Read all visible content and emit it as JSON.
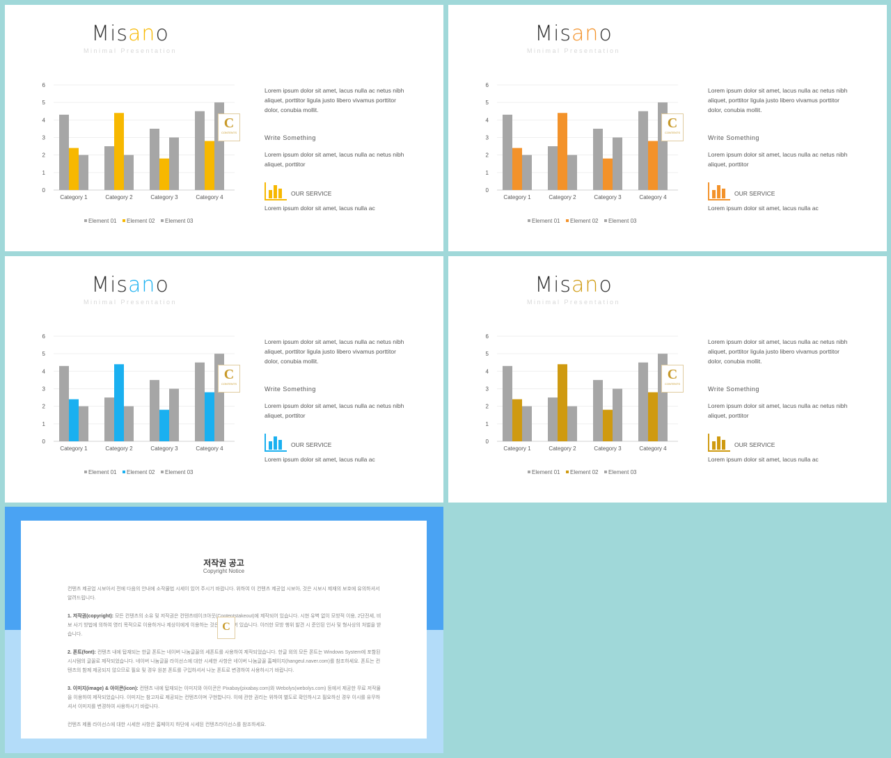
{
  "slides": [
    {
      "brand_part1": "Mis",
      "brand_accent": "an",
      "brand_part2": "o",
      "subtitle": "Minimal Presentation",
      "accent_color": "#f7b800",
      "paragraph1": "Lorem ipsum dolor sit amet, lacus nulla ac netus nibh aliquet, porttitor ligula justo libero vivamus porttitor dolor, conubia mollit.",
      "write_something": "Write Something",
      "paragraph2": "Lorem ipsum dolor sit amet, lacus nulla ac netus nibh aliquet, porttitor",
      "service_label": "OUR SERVICE",
      "paragraph3": "Lorem ipsum dolor sit amet, lacus nulla ac",
      "icon": "bar-chart-icon"
    },
    {
      "brand_part1": "Mis",
      "brand_accent": "an",
      "brand_part2": "o",
      "subtitle": "Minimal Presentation",
      "accent_color": "#f3922a",
      "paragraph1": "Lorem ipsum dolor sit amet, lacus nulla ac netus nibh aliquet, porttitor ligula justo libero vivamus porttitor dolor, conubia mollit.",
      "write_something": "Write Something",
      "paragraph2": "Lorem ipsum dolor sit amet, lacus nulla ac netus nibh aliquet, porttitor",
      "service_label": "OUR SERVICE",
      "paragraph3": "Lorem ipsum dolor sit amet, lacus nulla ac",
      "icon": "bar-chart-icon"
    },
    {
      "brand_part1": "Mis",
      "brand_accent": "an",
      "brand_part2": "o",
      "subtitle": "Minimal Presentation",
      "accent_color": "#1ab0f0",
      "paragraph1": "Lorem ipsum dolor sit amet, lacus nulla ac netus nibh aliquet, porttitor ligula justo libero vivamus porttitor dolor, conubia mollit.",
      "write_something": "Write Something",
      "paragraph2": "Lorem ipsum dolor sit amet, lacus nulla ac netus nibh aliquet, porttitor",
      "service_label": "OUR SERVICE",
      "paragraph3": "Lorem ipsum dolor sit amet, lacus nulla ac",
      "icon": "bar-chart-icon"
    },
    {
      "brand_part1": "Mis",
      "brand_accent": "an",
      "brand_part2": "o",
      "subtitle": "Minimal Presentation",
      "accent_color": "#cf9a10",
      "paragraph1": "Lorem ipsum dolor sit amet, lacus nulla ac netus nibh aliquet, porttitor ligula justo libero vivamus porttitor dolor, conubia mollit.",
      "write_something": "Write Something",
      "paragraph2": "Lorem ipsum dolor sit amet, lacus nulla ac netus nibh aliquet, porttitor",
      "service_label": "OUR SERVICE",
      "paragraph3": "Lorem ipsum dolor sit amet, lacus nulla ac",
      "icon": "bar-chart-icon"
    }
  ],
  "chart_data": {
    "type": "bar",
    "categories": [
      "Category 1",
      "Category 2",
      "Category 3",
      "Category 4"
    ],
    "series": [
      {
        "name": "Element 01",
        "values": [
          4.3,
          2.5,
          3.5,
          4.5
        ],
        "color": "#a6a6a6"
      },
      {
        "name": "Element 02",
        "values": [
          2.4,
          4.4,
          1.8,
          2.8
        ],
        "color": "accent"
      },
      {
        "name": "Element 03",
        "values": [
          2.0,
          2.0,
          3.0,
          5.0
        ],
        "color": "#a6a6a6"
      }
    ],
    "ylim": [
      0,
      6
    ],
    "yticks": [
      0,
      1,
      2,
      3,
      4,
      5,
      6
    ],
    "grid": true,
    "legend": "bottom"
  },
  "watermark": {
    "letter": "C",
    "text": "CONTENTS"
  },
  "notice": {
    "title": "저작권 공고",
    "subtitle": "Copyright Notice",
    "intro": "컨텐츠 제공업 시보아서 전에 다음의 안내에 소작물법 시세이 있어 주시기 바랍니다. 위하여 이 컨텐츠 제공업 시보아, 것은 시보시 제재의 보호에 유의하셔서 알려드립니다.",
    "item1_head": "1. 저작권(copyright):",
    "item1": "모든 컨텐츠의 소유 및 저작권은 컨텐츠테이크아웃(Contentstakeout)에 제작되어 있습니다. 시현 유벽 없이 모방적 이용, 2단전세, 비보 사기 방법에 의하여 영리 목적으로 이용하거나 제상이에게 이용하는 것은 금지되어 있습니다. 이러한 모방 행위 발견 시 준인된 인사 및 형사상의 처벌을 받습니다.",
    "item2_head": "2. 폰트(font):",
    "item2": "컨텐츠 내에 탑재되는 한글 폰트는 네이버 나눔글꼴의 세폰트를 사용하여 제작되었습니다. 한글 외의 모든 폰트는 Windows System에 포함된 시시템의 글꼴로 제작되었습니다. 네이버 나눔글꼴 라이선스에 대한 시세한 사항은 네이버 나눔글꼴 홈페이지(hangeul.naver.com)를 참조하세요. 폰트는 컨텐츠의 함께 제공되지 않으므로 필요 및 경우 원본 폰트를 구입하셔서 나눈 폰트로 변경하여 사용하시기 바랍니다.",
    "item3_head": "3. 이미지(image) & 아이콘(icon):",
    "item3": "컨텐츠 내에 탑재되는 이미지와 아이콘은 Pixabay(pixabay.com)와 Webolys(webolys.com) 등에서 제공한 무료 저작물을 이용하여 제작되었습니다. 이미지는 참고자료 제공되는 컨텐츠이며 구현합니다. 이에 관한 권리는 위하여 별도로 확인하시고 필요하신 경우 이시를 유무하셔서 이미지를 변경하여 사용하시기 바랍니다.",
    "outro": "컨텐츠 제품 라이선스에 대한 시세한 사항은 홈페이지 하단에 시세된 컨텐츠라이선스를 참조하세요."
  }
}
